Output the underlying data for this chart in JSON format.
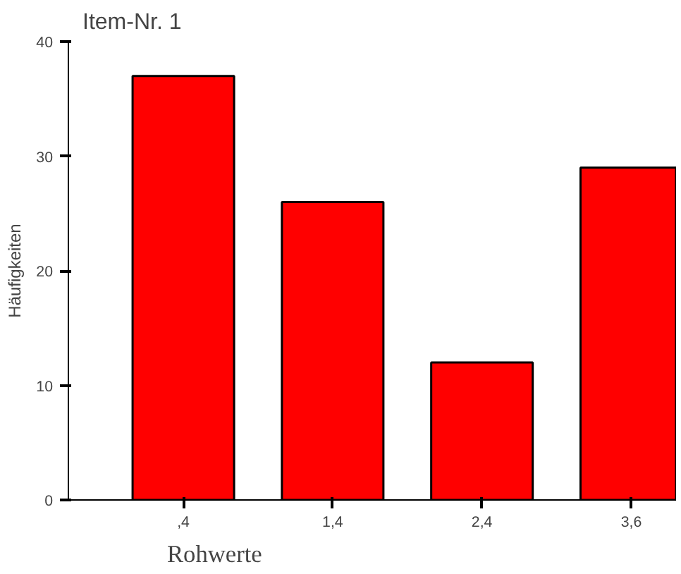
{
  "chart_data": {
    "type": "bar",
    "title": "Item-Nr. 1",
    "xlabel": "Rohwerte",
    "ylabel": "Häufigkeiten",
    "categories": [
      ",4",
      "1,4",
      "2,4",
      "3,6"
    ],
    "values": [
      37,
      26,
      12,
      29
    ],
    "color": "#ff0000",
    "ylim": [
      0,
      40
    ],
    "yticks": [
      0,
      10,
      20,
      30,
      40
    ],
    "grid": false
  }
}
